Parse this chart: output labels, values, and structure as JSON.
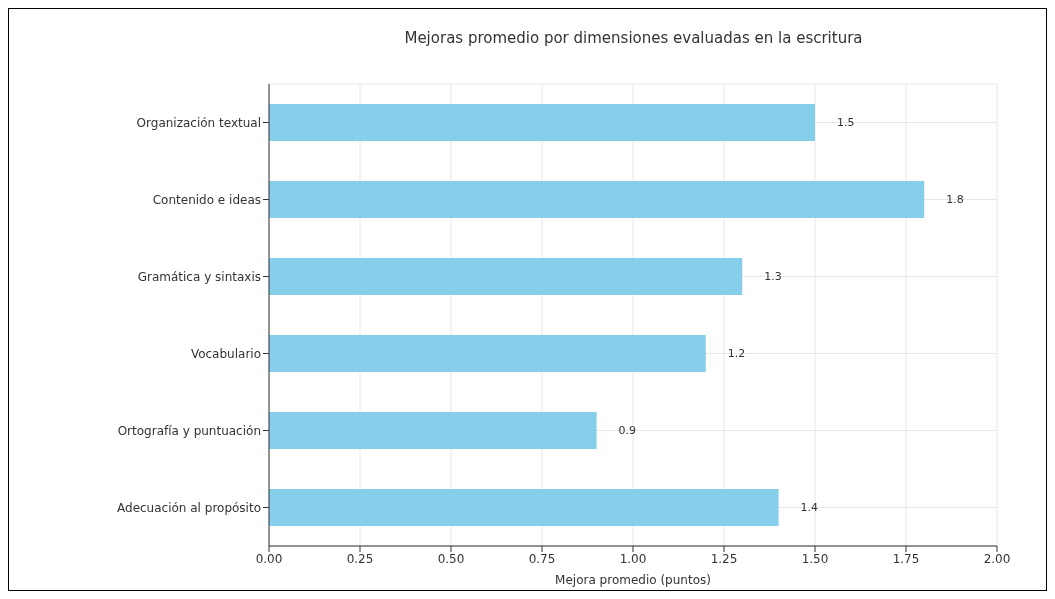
{
  "chart_data": {
    "type": "bar",
    "orientation": "horizontal",
    "title": "Mejoras promedio por dimensiones evaluadas en la escritura",
    "xlabel": "Mejora promedio (puntos)",
    "categories": [
      "Organización textual",
      "Contenido e ideas",
      "Gramática y sintaxis",
      "Vocabulario",
      "Ortografía y puntuación",
      "Adecuación al propósito"
    ],
    "values": [
      1.5,
      1.8,
      1.3,
      1.2,
      0.9,
      1.4
    ],
    "color": "#87ceeb",
    "xlim": [
      0,
      2
    ],
    "xticks": [
      {
        "value": 0,
        "label": "0.00"
      },
      {
        "value": 0.25,
        "label": "0.25"
      },
      {
        "value": 0.5,
        "label": "0.50"
      },
      {
        "value": 0.75,
        "label": "0.75"
      },
      {
        "value": 1,
        "label": "1.00"
      },
      {
        "value": 1.25,
        "label": "1.25"
      },
      {
        "value": 1.5,
        "label": "1.50"
      },
      {
        "value": 1.75,
        "label": "1.75"
      },
      {
        "value": 2,
        "label": "2.00"
      }
    ],
    "grid": true,
    "data_labels": true
  }
}
